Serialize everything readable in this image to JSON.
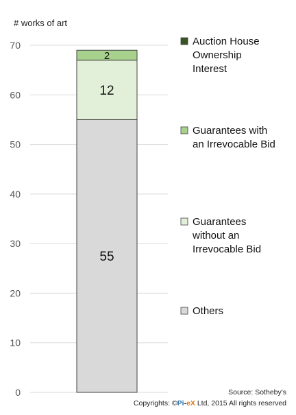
{
  "chart_data": {
    "type": "bar",
    "stacked": true,
    "categories": [
      ""
    ],
    "ylabel": "# works of art",
    "ylim": [
      0,
      70
    ],
    "yticks": [
      0,
      10,
      20,
      30,
      40,
      50,
      60,
      70
    ],
    "grid": true,
    "legend_position": "right",
    "series": [
      {
        "name": "Others",
        "values": [
          55
        ],
        "color": "#d9d9d9",
        "label": "55"
      },
      {
        "name": "Guarantees without an Irrevocable Bid",
        "values": [
          12
        ],
        "color": "#e2f0d9",
        "label": "12"
      },
      {
        "name": "Guarantees with an Irrevocable Bid",
        "values": [
          2
        ],
        "color": "#a9d18e",
        "label": "2"
      },
      {
        "name": "Auction House Ownership Interest",
        "values": [
          0
        ],
        "color": "#375623",
        "label": ""
      }
    ]
  },
  "footer": {
    "source": "Source: Sotheby's",
    "copyright_prefix": "Copyrights: ©",
    "brand_pi": "Pi",
    "brand_dash": "-",
    "brand_ex": "eX",
    "copyright_suffix": " Ltd, 2015 All rights reserved",
    "brand_colors": {
      "pi": "#1f6fb2",
      "ex": "#e07a1f"
    }
  }
}
